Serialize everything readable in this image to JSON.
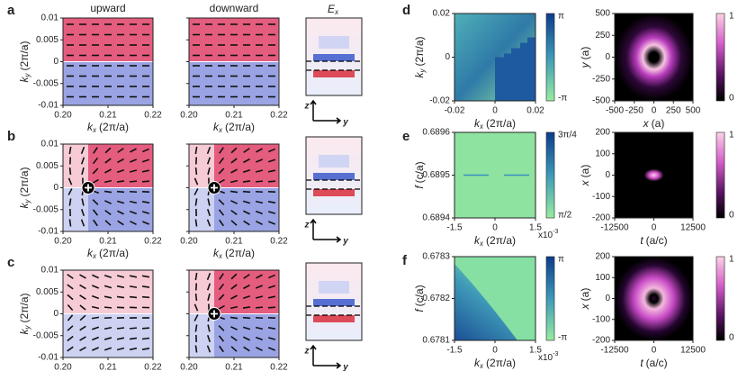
{
  "column_headers": {
    "upward": "upward",
    "downward": "downward",
    "field": {
      "symbol": "E",
      "subscript": "x"
    }
  },
  "panel_labels": [
    "a",
    "b",
    "c",
    "d",
    "e",
    "f"
  ],
  "kspace_axes": {
    "y_label": {
      "symbol": "k",
      "subscript": "y",
      "unit": "(2π/a)"
    },
    "x_label": {
      "symbol": "k",
      "subscript": "x",
      "unit": "(2π/a)"
    },
    "yticks": [
      "0.01",
      "0.005",
      "0",
      "-0.005",
      "-0.01"
    ],
    "xticks": [
      "0.20",
      "0.21",
      "0.22"
    ]
  },
  "field_axes": {
    "z": "z",
    "y": "y"
  },
  "phase_plots": [
    {
      "y_label": {
        "symbol": "k",
        "subscript": "y",
        "unit": "(2π/a)"
      },
      "yticks": [
        "0.02",
        "0",
        "-0.02"
      ],
      "x_label": {
        "symbol": "k",
        "subscript": "x",
        "unit": "(2π/a)"
      },
      "xticks": [
        "-0.02",
        "0",
        "0.02"
      ],
      "colorbar": [
        "π",
        "-π"
      ]
    },
    {
      "y_label": {
        "symbol": "f",
        "unit": "(c/a)"
      },
      "yticks": [
        "0.6896",
        "0.6895",
        "0.6894"
      ],
      "x_label": {
        "symbol": "k",
        "subscript": "x",
        "unit": "(2π/a)"
      },
      "xticks": [
        "-1.5",
        "0",
        "1.5"
      ],
      "x_scale": {
        "base": "x10",
        "exponent": "-3"
      },
      "colorbar": [
        "3π/4",
        "π/2"
      ]
    },
    {
      "y_label": {
        "symbol": "f",
        "unit": "(c/a)"
      },
      "yticks": [
        "0.6783",
        "0.6782",
        "0.6781"
      ],
      "x_label": {
        "symbol": "k",
        "subscript": "x",
        "unit": "(2π/a)"
      },
      "xticks": [
        "-1.5",
        "0",
        "1.5"
      ],
      "x_scale": {
        "base": "x10",
        "exponent": "-3"
      },
      "colorbar": [
        "π",
        "-π"
      ]
    }
  ],
  "intensity_plots": [
    {
      "y_label": {
        "symbol": "y",
        "unit": "(a)"
      },
      "yticks": [
        "500",
        "250",
        "0",
        "-250",
        "-500"
      ],
      "x_label": {
        "symbol": "x",
        "unit": "(a)"
      },
      "xticks": [
        "-500",
        "-250",
        "0",
        "250",
        "500"
      ],
      "colorbar": [
        "1",
        "0"
      ]
    },
    {
      "y_label": {
        "symbol": "x",
        "unit": "(a)"
      },
      "yticks": [
        "200",
        "100",
        "0",
        "-100",
        "-200"
      ],
      "x_label": {
        "symbol": "t",
        "unit": "(a/c)"
      },
      "xticks": [
        "-12500",
        "0",
        "12500"
      ],
      "colorbar": [
        "1",
        "0"
      ]
    },
    {
      "y_label": {
        "symbol": "x",
        "unit": "(a)"
      },
      "yticks": [
        "200",
        "100",
        "0",
        "-100",
        "-200"
      ],
      "x_label": {
        "symbol": "t",
        "unit": "(a/c)"
      },
      "xticks": [
        "-12500",
        "0",
        "12500"
      ],
      "colorbar": [
        "1",
        "0"
      ]
    }
  ]
}
